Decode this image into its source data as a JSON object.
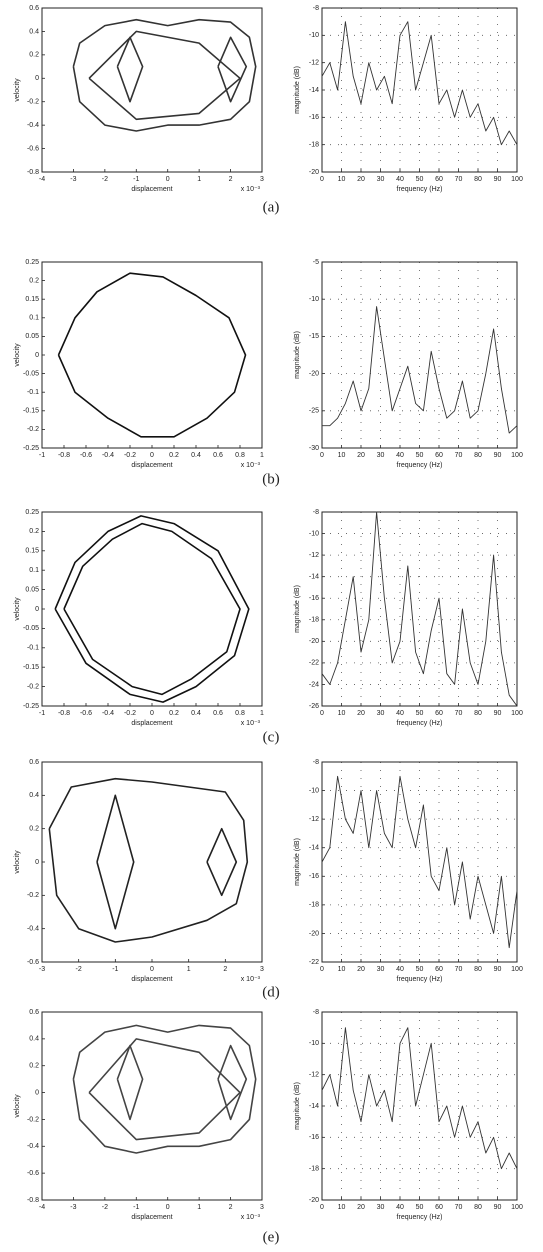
{
  "captions": [
    "(a)",
    "(b)",
    "(c)",
    "(d)",
    "(e)"
  ],
  "chart_data": [
    {
      "type": "phase",
      "xlabel": "displacement",
      "ylabel": "velocity",
      "x_multiplier": "x 10⁻³",
      "color": "#333333",
      "grid": false,
      "xlim": [
        -4,
        3
      ],
      "ylim": [
        -0.8,
        0.6
      ],
      "xticks": [
        -4,
        -3,
        -2,
        -1,
        0,
        1,
        2,
        3
      ],
      "yticks": [
        -0.8,
        -0.6,
        -0.4,
        -0.2,
        0,
        0.2,
        0.4,
        0.6
      ],
      "curves": [
        {
          "x": [
            -3,
            -2.8,
            -2,
            -1,
            0,
            1,
            2,
            2.6,
            2.8,
            2.6,
            2,
            1,
            0,
            -1,
            -2,
            -2.8,
            -3
          ],
          "y": [
            0.1,
            0.3,
            0.45,
            0.5,
            0.45,
            0.5,
            0.48,
            0.35,
            0.1,
            -0.2,
            -0.35,
            -0.4,
            -0.4,
            -0.45,
            -0.4,
            -0.2,
            0.1
          ]
        },
        {
          "x": [
            -2.5,
            -1,
            1,
            2.3,
            1,
            -1,
            -2.5
          ],
          "y": [
            0,
            0.4,
            0.3,
            0,
            -0.3,
            -0.35,
            0
          ]
        },
        {
          "x": [
            -1.6,
            -1.2,
            -0.8,
            -1.2,
            -1.6
          ],
          "y": [
            0.1,
            0.35,
            0.1,
            -0.2,
            0.1
          ]
        },
        {
          "x": [
            1.6,
            2,
            2.5,
            2,
            1.6
          ],
          "y": [
            0.1,
            0.35,
            0.1,
            -0.2,
            0.1
          ]
        }
      ]
    },
    {
      "type": "line",
      "xlabel": "frequency (Hz)",
      "ylabel": "magnitude (dB)",
      "color": "#333333",
      "grid": true,
      "xlim": [
        0,
        100
      ],
      "ylim": [
        -20,
        -8
      ],
      "xticks": [
        0,
        10,
        20,
        30,
        40,
        50,
        60,
        70,
        80,
        90,
        100
      ],
      "yticks": [
        -20,
        -18,
        -16,
        -14,
        -12,
        -10,
        -8
      ],
      "x": [
        0,
        4,
        8,
        12,
        16,
        20,
        24,
        28,
        32,
        36,
        40,
        44,
        48,
        52,
        56,
        60,
        64,
        68,
        72,
        76,
        80,
        84,
        88,
        92,
        96,
        100
      ],
      "values": [
        -13,
        -12,
        -14,
        -9,
        -13,
        -15,
        -12,
        -14,
        -13,
        -15,
        -10,
        -9,
        -14,
        -12,
        -10,
        -15,
        -14,
        -16,
        -14,
        -16,
        -15,
        -17,
        -16,
        -18,
        -17,
        -18
      ]
    },
    {
      "type": "phase",
      "xlabel": "displacement",
      "ylabel": "velocity",
      "x_multiplier": "x 10⁻³",
      "color": "#111111",
      "grid": false,
      "xlim": [
        -1,
        1
      ],
      "ylim": [
        -0.25,
        0.25
      ],
      "xticks": [
        -1,
        -0.8,
        -0.6,
        -0.4,
        -0.2,
        0,
        0.2,
        0.4,
        0.6,
        0.8,
        1
      ],
      "yticks": [
        -0.25,
        -0.2,
        -0.15,
        -0.1,
        -0.05,
        0,
        0.05,
        0.1,
        0.15,
        0.2,
        0.25
      ],
      "curves": [
        {
          "x": [
            -0.85,
            -0.7,
            -0.5,
            -0.2,
            0.1,
            0.4,
            0.7,
            0.85,
            0.75,
            0.5,
            0.2,
            -0.1,
            -0.4,
            -0.7,
            -0.85
          ],
          "y": [
            0,
            0.1,
            0.17,
            0.22,
            0.21,
            0.16,
            0.1,
            0,
            -0.1,
            -0.17,
            -0.22,
            -0.22,
            -0.17,
            -0.1,
            0
          ]
        }
      ]
    },
    {
      "type": "line",
      "xlabel": "frequency (Hz)",
      "ylabel": "magnitude (dB)",
      "color": "#333333",
      "grid": true,
      "xlim": [
        0,
        100
      ],
      "ylim": [
        -30,
        -5
      ],
      "xticks": [
        0,
        10,
        20,
        30,
        40,
        50,
        60,
        70,
        80,
        90,
        100
      ],
      "yticks": [
        -30,
        -25,
        -20,
        -15,
        -10,
        -5
      ],
      "x": [
        0,
        4,
        8,
        12,
        16,
        20,
        24,
        28,
        32,
        36,
        40,
        44,
        48,
        52,
        56,
        60,
        64,
        68,
        72,
        76,
        80,
        84,
        88,
        92,
        96,
        100
      ],
      "values": [
        -27,
        -27,
        -26,
        -24,
        -21,
        -25,
        -22,
        -11,
        -18,
        -25,
        -22,
        -19,
        -24,
        -25,
        -17,
        -22,
        -26,
        -25,
        -21,
        -26,
        -25,
        -20,
        -14,
        -22,
        -28,
        -27
      ]
    },
    {
      "type": "phase",
      "xlabel": "displacement",
      "ylabel": "velocity",
      "x_multiplier": "x 10⁻³",
      "color": "#111111",
      "grid": false,
      "xlim": [
        -1,
        1
      ],
      "ylim": [
        -0.25,
        0.25
      ],
      "xticks": [
        -1,
        -0.8,
        -0.6,
        -0.4,
        -0.2,
        0,
        0.2,
        0.4,
        0.6,
        0.8,
        1
      ],
      "yticks": [
        -0.25,
        -0.2,
        -0.15,
        -0.1,
        -0.05,
        0,
        0.05,
        0.1,
        0.15,
        0.2,
        0.25
      ],
      "curves": [
        {
          "x": [
            -0.88,
            -0.7,
            -0.4,
            -0.1,
            0.2,
            0.6,
            0.88,
            0.75,
            0.4,
            0.1,
            -0.2,
            -0.6,
            -0.88
          ],
          "y": [
            0,
            0.12,
            0.2,
            0.24,
            0.22,
            0.15,
            0,
            -0.12,
            -0.2,
            -0.24,
            -0.22,
            -0.14,
            0
          ]
        },
        {
          "x": [
            -0.8,
            -0.63,
            -0.36,
            -0.09,
            0.18,
            0.54,
            0.8,
            0.68,
            0.36,
            0.09,
            -0.18,
            -0.54,
            -0.8
          ],
          "y": [
            0,
            0.11,
            0.18,
            0.22,
            0.2,
            0.13,
            0,
            -0.11,
            -0.18,
            -0.22,
            -0.2,
            -0.13,
            0
          ]
        }
      ]
    },
    {
      "type": "line",
      "xlabel": "frequency (Hz)",
      "ylabel": "magnitude (dB)",
      "color": "#333333",
      "grid": true,
      "xlim": [
        0,
        100
      ],
      "ylim": [
        -26,
        -8
      ],
      "xticks": [
        0,
        10,
        20,
        30,
        40,
        50,
        60,
        70,
        80,
        90,
        100
      ],
      "yticks": [
        -26,
        -24,
        -22,
        -20,
        -18,
        -16,
        -14,
        -12,
        -10,
        -8
      ],
      "x": [
        0,
        4,
        8,
        12,
        16,
        20,
        24,
        28,
        32,
        36,
        40,
        44,
        48,
        52,
        56,
        60,
        64,
        68,
        72,
        76,
        80,
        84,
        88,
        92,
        96,
        100
      ],
      "values": [
        -23,
        -24,
        -22,
        -18,
        -14,
        -21,
        -18,
        -8,
        -16,
        -22,
        -20,
        -13,
        -21,
        -23,
        -19,
        -16,
        -23,
        -24,
        -17,
        -22,
        -24,
        -20,
        -12,
        -21,
        -25,
        -26
      ]
    },
    {
      "type": "phase",
      "xlabel": "displacement",
      "ylabel": "velocity",
      "x_multiplier": "x 10⁻³",
      "color": "#222222",
      "grid": false,
      "xlim": [
        -3,
        3
      ],
      "ylim": [
        -0.6,
        0.6
      ],
      "xticks": [
        -3,
        -2,
        -1,
        0,
        1,
        2,
        3
      ],
      "yticks": [
        -0.6,
        -0.4,
        -0.2,
        0,
        0.2,
        0.4,
        0.6
      ],
      "curves": [
        {
          "x": [
            -2.8,
            -2.2,
            -1,
            0,
            1,
            2,
            2.5,
            2.6,
            2.3,
            1.5,
            0,
            -1,
            -2,
            -2.6,
            -2.8
          ],
          "y": [
            0.2,
            0.45,
            0.5,
            0.48,
            0.45,
            0.42,
            0.25,
            0,
            -0.25,
            -0.35,
            -0.45,
            -0.48,
            -0.4,
            -0.2,
            0.2
          ]
        },
        {
          "x": [
            -1.5,
            -1,
            -0.5,
            -1,
            -1.5
          ],
          "y": [
            0,
            0.4,
            0,
            -0.4,
            0
          ]
        },
        {
          "x": [
            1.5,
            1.9,
            2.3,
            1.9,
            1.5
          ],
          "y": [
            0,
            0.2,
            0,
            -0.2,
            0
          ]
        }
      ]
    },
    {
      "type": "line",
      "xlabel": "frequency (Hz)",
      "ylabel": "magnitude (dB)",
      "color": "#333333",
      "grid": true,
      "xlim": [
        0,
        100
      ],
      "ylim": [
        -22,
        -8
      ],
      "xticks": [
        0,
        10,
        20,
        30,
        40,
        50,
        60,
        70,
        80,
        90,
        100
      ],
      "yticks": [
        -22,
        -20,
        -18,
        -16,
        -14,
        -12,
        -10,
        -8
      ],
      "x": [
        0,
        4,
        8,
        12,
        16,
        20,
        24,
        28,
        32,
        36,
        40,
        44,
        48,
        52,
        56,
        60,
        64,
        68,
        72,
        76,
        80,
        84,
        88,
        92,
        96,
        100
      ],
      "values": [
        -15,
        -14,
        -9,
        -12,
        -13,
        -10,
        -14,
        -10,
        -13,
        -14,
        -9,
        -12,
        -14,
        -11,
        -16,
        -17,
        -14,
        -18,
        -15,
        -19,
        -16,
        -18,
        -20,
        -16,
        -21,
        -17
      ]
    },
    {
      "type": "phase",
      "xlabel": "displacement",
      "ylabel": "velocity",
      "x_multiplier": "x 10⁻³",
      "color": "#444444",
      "grid": false,
      "xlim": [
        -4,
        3
      ],
      "ylim": [
        -0.8,
        0.6
      ],
      "xticks": [
        -4,
        -3,
        -2,
        -1,
        0,
        1,
        2,
        3
      ],
      "yticks": [
        -0.8,
        -0.6,
        -0.4,
        -0.2,
        0,
        0.2,
        0.4,
        0.6
      ],
      "curves": [
        {
          "x": [
            -3,
            -2.8,
            -2,
            -1,
            0,
            1,
            2,
            2.6,
            2.8,
            2.6,
            2,
            1,
            0,
            -1,
            -2,
            -2.8,
            -3
          ],
          "y": [
            0.1,
            0.3,
            0.45,
            0.5,
            0.45,
            0.5,
            0.48,
            0.35,
            0.1,
            -0.2,
            -0.35,
            -0.4,
            -0.4,
            -0.45,
            -0.4,
            -0.2,
            0.1
          ]
        },
        {
          "x": [
            -2.5,
            -1,
            1,
            2.3,
            1,
            -1,
            -2.5
          ],
          "y": [
            0,
            0.4,
            0.3,
            0,
            -0.3,
            -0.35,
            0
          ]
        },
        {
          "x": [
            -1.6,
            -1.2,
            -0.8,
            -1.2,
            -1.6
          ],
          "y": [
            0.1,
            0.35,
            0.1,
            -0.2,
            0.1
          ]
        },
        {
          "x": [
            1.6,
            2,
            2.5,
            2,
            1.6
          ],
          "y": [
            0.1,
            0.35,
            0.1,
            -0.2,
            0.1
          ]
        }
      ]
    },
    {
      "type": "line",
      "xlabel": "frequency (Hz)",
      "ylabel": "magnitude (dB)",
      "color": "#333333",
      "grid": true,
      "xlim": [
        0,
        100
      ],
      "ylim": [
        -20,
        -8
      ],
      "xticks": [
        0,
        10,
        20,
        30,
        40,
        50,
        60,
        70,
        80,
        90,
        100
      ],
      "yticks": [
        -20,
        -18,
        -16,
        -14,
        -12,
        -10,
        -8
      ],
      "x": [
        0,
        4,
        8,
        12,
        16,
        20,
        24,
        28,
        32,
        36,
        40,
        44,
        48,
        52,
        56,
        60,
        64,
        68,
        72,
        76,
        80,
        84,
        88,
        92,
        96,
        100
      ],
      "values": [
        -13,
        -12,
        -14,
        -9,
        -13,
        -15,
        -12,
        -14,
        -13,
        -15,
        -10,
        -9,
        -14,
        -12,
        -10,
        -15,
        -14,
        -16,
        -14,
        -16,
        -15,
        -17,
        -16,
        -18,
        -17,
        -18
      ]
    }
  ]
}
